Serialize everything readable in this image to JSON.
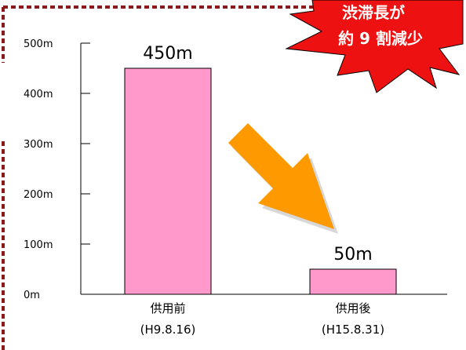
{
  "chart_data": {
    "type": "bar",
    "categories": [
      "供用前",
      "供用後"
    ],
    "category_dates": [
      "(H9.8.16)",
      "(H15.8.31)"
    ],
    "values": [
      450,
      50
    ],
    "data_labels": [
      "450m",
      "50m"
    ],
    "yticks": [
      0,
      100,
      200,
      300,
      400,
      500
    ],
    "ytick_labels": [
      "0m",
      "100m",
      "200m",
      "300m",
      "400m",
      "500m"
    ],
    "ylim": [
      0,
      500
    ],
    "bar_color": "#ff99cc",
    "grid": false
  },
  "callout": {
    "line1": "渋滞長が",
    "line2": "約 9 割減少",
    "fill_color": "#ee1111",
    "text_color": "#ffffff"
  },
  "arrow": {
    "color": "#ff9900"
  },
  "frame": {
    "border_color": "#8b1a1a",
    "style": "dotted"
  }
}
